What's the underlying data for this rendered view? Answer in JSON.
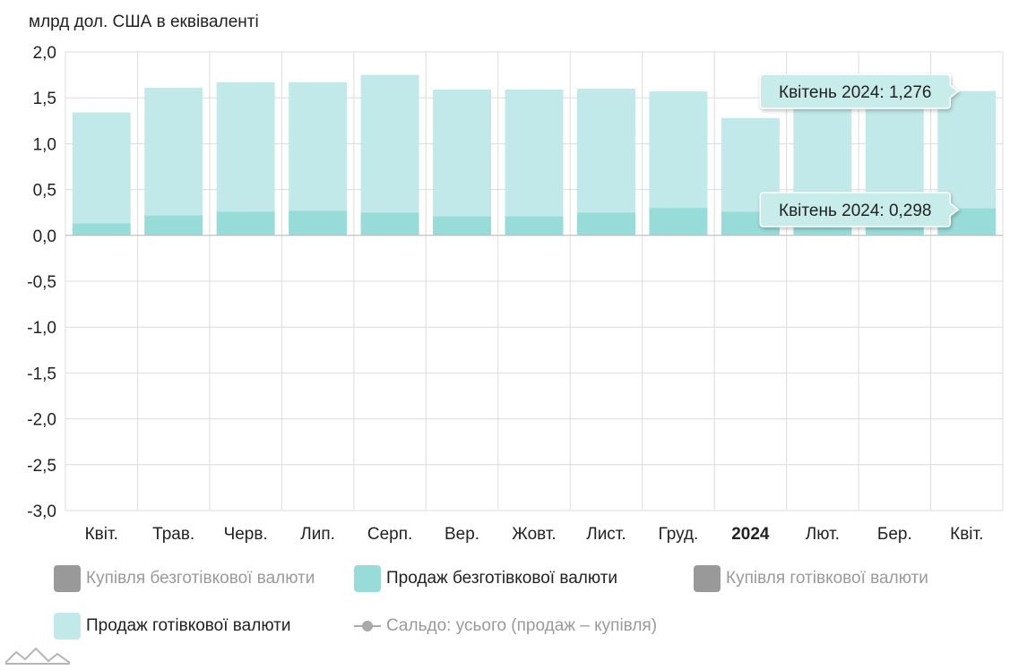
{
  "unit_label": "млрд дол. США в еквіваленті",
  "chart_data": {
    "type": "bar",
    "categories": [
      "Квіт.",
      "Трав.",
      "Черв.",
      "Лип.",
      "Серп.",
      "Вер.",
      "Жовт.",
      "Лист.",
      "Груд.",
      "2024",
      "Лют.",
      "Бер.",
      "Квіт."
    ],
    "bold_categories": [
      "2024"
    ],
    "stacked": true,
    "ylim": [
      -3.0,
      2.0
    ],
    "yticks": [
      "2,0",
      "1,5",
      "1,0",
      "0,5",
      "0,0",
      "-0,5",
      "-1,0",
      "-1,5",
      "-2,0",
      "-2,5",
      "-3,0"
    ],
    "ytick_values": [
      2.0,
      1.5,
      1.0,
      0.5,
      0.0,
      -0.5,
      -1.0,
      -1.5,
      -2.0,
      -2.5,
      -3.0
    ],
    "grid": true,
    "series": [
      {
        "name": "Продаж безготівкової валюти",
        "color": "#97dcd8",
        "values": [
          0.13,
          0.22,
          0.26,
          0.27,
          0.25,
          0.21,
          0.21,
          0.25,
          0.3,
          0.26,
          0.27,
          0.27,
          0.298
        ]
      },
      {
        "name": "Продаж готівкової валюти",
        "color": "#c2e9e9",
        "values": [
          1.21,
          1.39,
          1.41,
          1.4,
          1.5,
          1.38,
          1.38,
          1.35,
          1.27,
          1.02,
          1.3,
          1.3,
          1.276
        ]
      }
    ],
    "tooltips": [
      {
        "text": "Квітень 2024: 1,276"
      },
      {
        "text": "Квітень 2024: 0,298"
      }
    ],
    "legend": [
      {
        "label": "Купівля безготівкової валюти",
        "color": "#999999",
        "active": false,
        "kind": "box"
      },
      {
        "label": "Продаж безготівкової валюти",
        "color": "#97dcd8",
        "active": true,
        "kind": "box"
      },
      {
        "label": "Купівля готівкової валюти",
        "color": "#999999",
        "active": false,
        "kind": "box"
      },
      {
        "label": "Продаж готівкової валюти",
        "color": "#c2e9e9",
        "active": true,
        "kind": "box"
      },
      {
        "label": "Сальдо: усього (продаж – купівля)",
        "color": "#aaaaaa",
        "active": false,
        "kind": "line"
      }
    ],
    "legend_placement": "bottom"
  }
}
